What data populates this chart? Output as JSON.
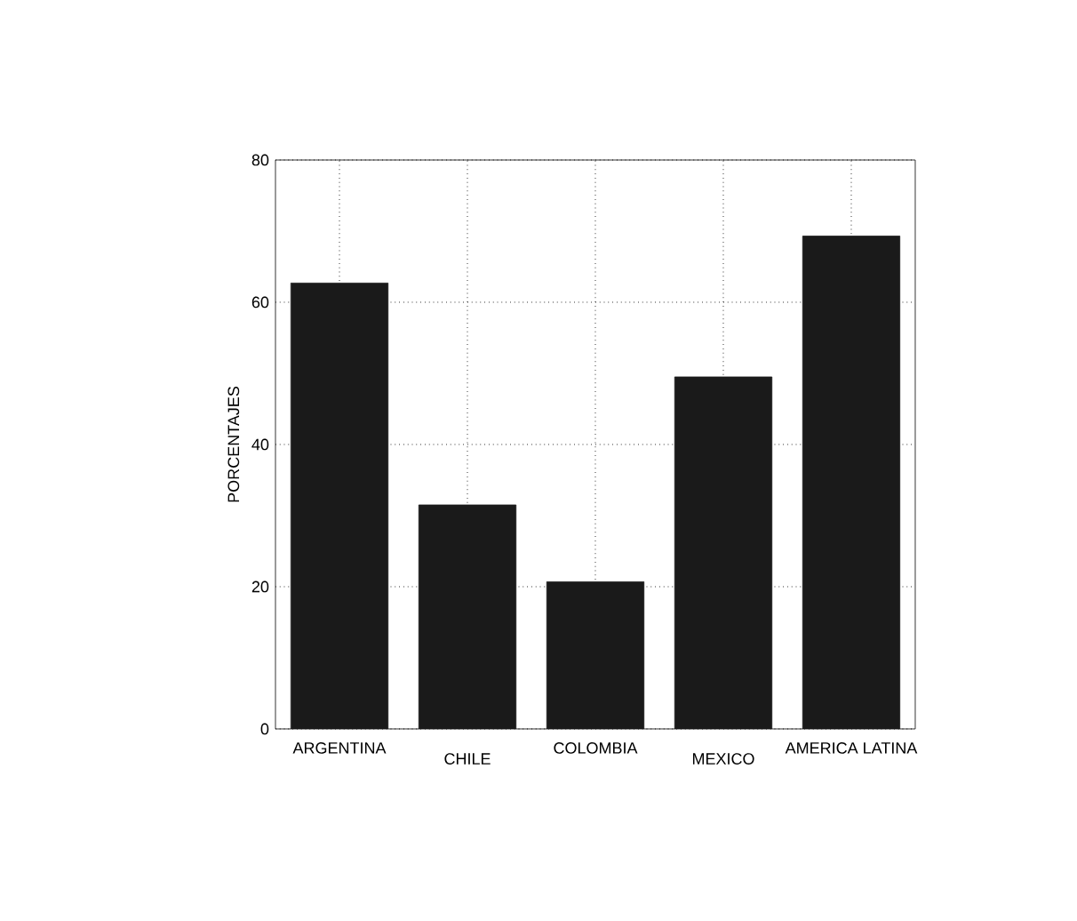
{
  "chart_data": {
    "type": "bar",
    "ylabel": "PORCENTAJES",
    "categories": [
      "ARGENTINA",
      "CHILE",
      "COLOMBIA",
      "MEXICO",
      "AMERICA LATINA"
    ],
    "values": [
      62.7,
      31.5,
      20.7,
      49.5,
      69.3
    ],
    "color": "#1a1a1a",
    "ylim": [
      0,
      80
    ],
    "yticks": [
      0,
      20,
      40,
      60,
      80
    ],
    "grid": true
  }
}
